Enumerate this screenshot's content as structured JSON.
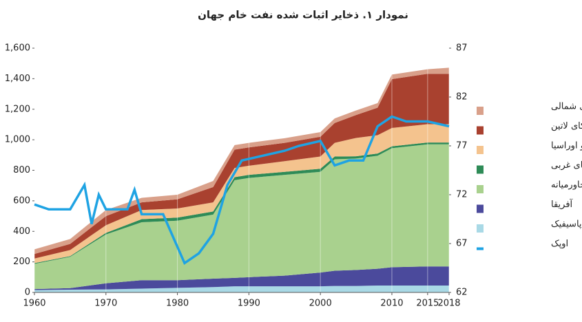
{
  "chart_data": {
    "type": "stacked_area_line",
    "title": "نمودار ۱. ذخایر اثبات شده نفت خام جهان",
    "x": [
      1960,
      1965,
      1970,
      1975,
      1980,
      1985,
      1988,
      1990,
      1995,
      2000,
      2002,
      2005,
      2008,
      2010,
      2015,
      2018
    ],
    "xlim": [
      1960,
      2018
    ],
    "xticks": [
      1960,
      1970,
      1980,
      1990,
      2000,
      2010,
      2015,
      2018
    ],
    "ylim": [
      0,
      1600
    ],
    "yticks": [
      0,
      200,
      400,
      600,
      800,
      {
        "value": 1000,
        "label": "1,000"
      },
      {
        "value": 1200,
        "label": "1,200"
      },
      {
        "value": 1400,
        "label": "1,400"
      },
      {
        "value": 1600,
        "label": "1,600"
      }
    ],
    "y2lim": [
      62,
      87
    ],
    "y2ticks": [
      62,
      67,
      72,
      77,
      82,
      87
    ],
    "grid": true,
    "series": [
      {
        "name": "آسیا پاسیفیک",
        "color": "#a9d9e6",
        "values": [
          15,
          18,
          20,
          25,
          30,
          35,
          40,
          40,
          40,
          40,
          42,
          42,
          45,
          45,
          45,
          45
        ]
      },
      {
        "name": "آفریقا",
        "color": "#4b4a9c",
        "values": [
          7,
          10,
          40,
          55,
          50,
          55,
          55,
          60,
          70,
          90,
          100,
          105,
          110,
          120,
          125,
          125
        ]
      },
      {
        "name": "خاورمیانه",
        "color": "#a9d18e",
        "values": [
          165,
          205,
          320,
          380,
          390,
          420,
          640,
          650,
          660,
          660,
          730,
          730,
          740,
          780,
          800,
          800
        ]
      },
      {
        "name": "اروپای غربی",
        "color": "#2e8b57",
        "values": [
          5,
          5,
          10,
          20,
          20,
          20,
          20,
          20,
          20,
          20,
          18,
          15,
          15,
          12,
          12,
          12
        ]
      },
      {
        "name": "اروپای شرقی و اوراسیا",
        "color": "#f4c38e",
        "values": [
          30,
          40,
          50,
          60,
          60,
          60,
          60,
          60,
          70,
          80,
          90,
          120,
          120,
          120,
          120,
          120
        ]
      },
      {
        "name": "آمریکای لاتین",
        "color": "#a9412f",
        "values": [
          30,
          40,
          60,
          50,
          60,
          100,
          120,
          120,
          120,
          130,
          130,
          150,
          180,
          320,
          330,
          330
        ]
      },
      {
        "name": "آمریکای شمالی",
        "color": "#d9a08a",
        "values": [
          30,
          32,
          40,
          30,
          30,
          40,
          30,
          30,
          30,
          30,
          30,
          30,
          30,
          30,
          30,
          40
        ]
      },
      {
        "name": "اوپک",
        "color": "#1fa3e3",
        "axis": "y2",
        "x": [
          1960,
          1962,
          1965,
          1967,
          1968,
          1969,
          1970,
          1973,
          1974,
          1975,
          1978,
          1981,
          1983,
          1985,
          1987,
          1989,
          1992,
          1995,
          1997,
          2000,
          2002,
          2004,
          2006,
          2008,
          2010,
          2012,
          2015,
          2018
        ],
        "values": [
          71,
          70.5,
          70.5,
          73,
          69,
          72,
          70.5,
          70.5,
          72.5,
          70,
          70,
          65,
          66,
          68,
          73,
          75.5,
          76,
          76.5,
          77,
          77.5,
          75,
          75.5,
          75.5,
          79,
          80,
          79.5,
          79.5,
          79
        ]
      }
    ]
  }
}
